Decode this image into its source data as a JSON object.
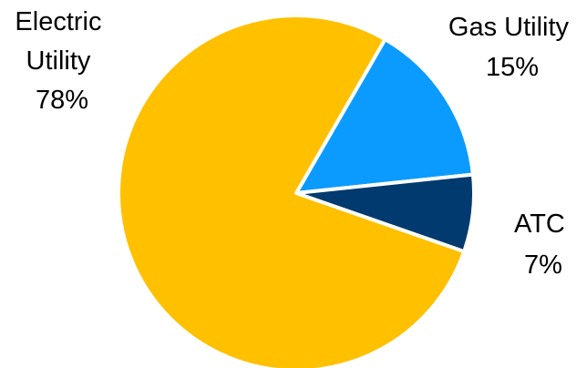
{
  "chart_data": {
    "type": "pie",
    "title": "",
    "start_direction": "upper-right",
    "direction": "clockwise",
    "slices": [
      {
        "label_lines": [
          "Gas Utility",
          "15%"
        ],
        "value": 15,
        "color": "#0b9bff"
      },
      {
        "label_lines": [
          "ATC",
          "7%"
        ],
        "value": 7,
        "color": "#003a6e"
      },
      {
        "label_lines": [
          "Electric",
          "Utility",
          "78%"
        ],
        "value": 78,
        "color": "#ffc000"
      }
    ],
    "slice_border_color": "#ffffff"
  }
}
